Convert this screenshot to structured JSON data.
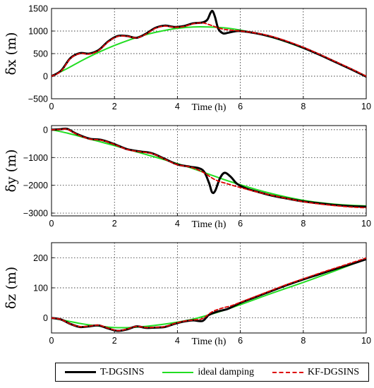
{
  "chart_data": [
    {
      "type": "line",
      "ylabel": "δx  (m)",
      "xlabel": "Time (h)",
      "xlim": [
        0,
        10
      ],
      "ylim": [
        -500,
        1500
      ],
      "xticks": [
        "0",
        "2",
        "4",
        "6",
        "8",
        "10"
      ],
      "yticks": [
        "−500",
        "0",
        "500",
        "1000",
        "1500"
      ],
      "ytick_values": [
        -500,
        0,
        500,
        1000,
        1500
      ],
      "grid": true,
      "series": [
        {
          "name": "T-DGSINS",
          "x": [
            0,
            0.3,
            0.6,
            0.9,
            1.2,
            1.5,
            1.8,
            2.1,
            2.4,
            2.7,
            3.0,
            3.3,
            3.6,
            3.9,
            4.2,
            4.5,
            4.8,
            4.95,
            5.05,
            5.12,
            5.2,
            5.3,
            5.45,
            5.6,
            5.8,
            6.0,
            6.5,
            7.0,
            7.5,
            8.0,
            8.5,
            9.0,
            9.5,
            10.0
          ],
          "y": [
            0,
            120,
            400,
            510,
            500,
            580,
            770,
            890,
            890,
            850,
            940,
            1070,
            1120,
            1090,
            1110,
            1170,
            1190,
            1250,
            1400,
            1440,
            1300,
            1050,
            950,
            960,
            990,
            1000,
            950,
            870,
            760,
            630,
            480,
            320,
            160,
            -10
          ]
        },
        {
          "name": "ideal damping",
          "x": [
            0,
            0.5,
            1.0,
            1.5,
            2.0,
            2.5,
            3.0,
            3.5,
            4.0,
            4.5,
            5.0,
            5.5,
            6.0,
            6.5,
            7.0,
            7.5,
            8.0,
            8.5,
            9.0,
            9.5,
            10.0
          ],
          "y": [
            0,
            170,
            360,
            530,
            680,
            810,
            920,
            1000,
            1060,
            1090,
            1090,
            1070,
            1020,
            950,
            860,
            750,
            620,
            480,
            320,
            160,
            0
          ]
        },
        {
          "name": "KF-DGSINS",
          "x": [
            0,
            0.3,
            0.6,
            0.9,
            1.2,
            1.5,
            1.8,
            2.1,
            2.4,
            2.7,
            3.0,
            3.3,
            3.6,
            3.9,
            4.2,
            4.5,
            4.8,
            5.1,
            5.4,
            5.7,
            6.0,
            6.5,
            7.0,
            7.5,
            8.0,
            8.5,
            9.0,
            9.5,
            10.0
          ],
          "y": [
            0,
            110,
            390,
            500,
            490,
            570,
            760,
            880,
            885,
            850,
            930,
            1060,
            1110,
            1085,
            1100,
            1160,
            1180,
            1120,
            1050,
            1020,
            1000,
            955,
            880,
            770,
            640,
            490,
            330,
            170,
            0
          ]
        }
      ]
    },
    {
      "type": "line",
      "ylabel": "δy  (m)",
      "xlabel": "Time (h)",
      "xlim": [
        0,
        10
      ],
      "ylim": [
        -3100,
        150
      ],
      "xticks": [
        "0",
        "2",
        "4",
        "6",
        "8",
        "10"
      ],
      "yticks": [
        "0",
        "−1000",
        "−2000",
        "−3000"
      ],
      "ytick_values": [
        0,
        -1000,
        -2000,
        -3000
      ],
      "grid": true,
      "series": [
        {
          "name": "T-DGSINS",
          "x": [
            0,
            0.3,
            0.5,
            0.8,
            1.2,
            1.6,
            2.0,
            2.4,
            2.8,
            3.2,
            3.6,
            4.0,
            4.4,
            4.8,
            5.0,
            5.1,
            5.2,
            5.35,
            5.5,
            5.7,
            5.9,
            6.2,
            6.6,
            7.0,
            7.5,
            8.0,
            8.5,
            9.0,
            9.5,
            10.0
          ],
          "y": [
            0,
            20,
            30,
            -150,
            -320,
            -370,
            -520,
            -700,
            -780,
            -850,
            -1050,
            -1250,
            -1330,
            -1450,
            -1900,
            -2250,
            -2200,
            -1750,
            -1550,
            -1700,
            -1950,
            -2120,
            -2250,
            -2370,
            -2480,
            -2580,
            -2650,
            -2710,
            -2750,
            -2770
          ]
        },
        {
          "name": "ideal damping",
          "x": [
            0,
            0.5,
            1.0,
            1.5,
            2.0,
            2.5,
            3.0,
            3.5,
            4.0,
            4.5,
            5.0,
            5.5,
            6.0,
            6.5,
            7.0,
            7.5,
            8.0,
            8.5,
            9.0,
            9.5,
            10.0
          ],
          "y": [
            0,
            -120,
            -270,
            -420,
            -570,
            -730,
            -890,
            -1050,
            -1220,
            -1400,
            -1600,
            -1800,
            -1980,
            -2150,
            -2300,
            -2430,
            -2540,
            -2620,
            -2680,
            -2720,
            -2740
          ]
        },
        {
          "name": "KF-DGSINS",
          "x": [
            0,
            0.3,
            0.5,
            0.8,
            1.2,
            1.6,
            2.0,
            2.4,
            2.8,
            3.2,
            3.6,
            4.0,
            4.4,
            4.8,
            5.2,
            5.6,
            6.0,
            6.5,
            7.0,
            7.5,
            8.0,
            8.5,
            9.0,
            9.5,
            10.0
          ],
          "y": [
            0,
            10,
            20,
            -160,
            -330,
            -380,
            -530,
            -710,
            -790,
            -860,
            -1060,
            -1260,
            -1340,
            -1520,
            -1800,
            -1950,
            -2080,
            -2230,
            -2360,
            -2480,
            -2590,
            -2670,
            -2730,
            -2780,
            -2810
          ]
        }
      ]
    },
    {
      "type": "line",
      "ylabel": "δz  (m)",
      "xlabel": "Time (h)",
      "xlim": [
        0,
        10
      ],
      "ylim": [
        -50,
        250
      ],
      "xticks": [
        "0",
        "2",
        "4",
        "6",
        "8",
        "10"
      ],
      "yticks": [
        "0",
        "100",
        "200"
      ],
      "ytick_values": [
        0,
        100,
        200
      ],
      "grid": true,
      "series": [
        {
          "name": "T-DGSINS",
          "x": [
            0,
            0.3,
            0.6,
            0.9,
            1.2,
            1.5,
            1.8,
            2.1,
            2.4,
            2.7,
            3.0,
            3.3,
            3.6,
            3.9,
            4.2,
            4.5,
            4.8,
            5.0,
            5.3,
            5.6,
            6.0,
            6.5,
            7.0,
            7.5,
            8.0,
            8.5,
            9.0,
            9.5,
            10.0
          ],
          "y": [
            0,
            -5,
            -20,
            -30,
            -28,
            -25,
            -35,
            -43,
            -38,
            -28,
            -33,
            -32,
            -30,
            -20,
            -12,
            -8,
            -10,
            10,
            22,
            30,
            50,
            70,
            90,
            110,
            128,
            145,
            162,
            178,
            195
          ]
        },
        {
          "name": "ideal damping",
          "x": [
            0,
            0.5,
            1.0,
            1.5,
            2.0,
            2.5,
            3.0,
            3.5,
            4.0,
            4.5,
            5.0,
            5.5,
            6.0,
            6.5,
            7.0,
            7.5,
            8.0,
            8.5,
            9.0,
            9.5,
            10.0
          ],
          "y": [
            0,
            -10,
            -20,
            -27,
            -32,
            -32,
            -28,
            -22,
            -14,
            -4,
            10,
            26,
            44,
            63,
            82,
            100,
            118,
            137,
            156,
            176,
            196
          ]
        },
        {
          "name": "KF-DGSINS",
          "x": [
            0,
            0.3,
            0.6,
            0.9,
            1.2,
            1.5,
            1.8,
            2.1,
            2.4,
            2.7,
            3.0,
            3.3,
            3.6,
            3.9,
            4.2,
            4.5,
            4.8,
            5.1,
            5.4,
            5.7,
            6.0,
            6.5,
            7.0,
            7.5,
            8.0,
            8.5,
            9.0,
            9.5,
            10.0
          ],
          "y": [
            0,
            -5,
            -20,
            -29,
            -27,
            -24,
            -34,
            -42,
            -37,
            -28,
            -32,
            -31,
            -29,
            -19,
            -11,
            -7,
            -2,
            20,
            32,
            40,
            52,
            72,
            92,
            112,
            130,
            148,
            165,
            182,
            199
          ]
        }
      ]
    }
  ],
  "legend": {
    "items": [
      {
        "label": "T-DGSINS",
        "color": "#000000",
        "style": "solid",
        "width": 3
      },
      {
        "label": "ideal damping",
        "color": "#22dd22",
        "style": "solid",
        "width": 2
      },
      {
        "label": "KF-DGSINS",
        "color": "#dd0000",
        "style": "dashed",
        "width": 2
      }
    ]
  },
  "colors": {
    "T-DGSINS": "#000000",
    "ideal damping": "#22dd22",
    "KF-DGSINS": "#dd0000"
  }
}
